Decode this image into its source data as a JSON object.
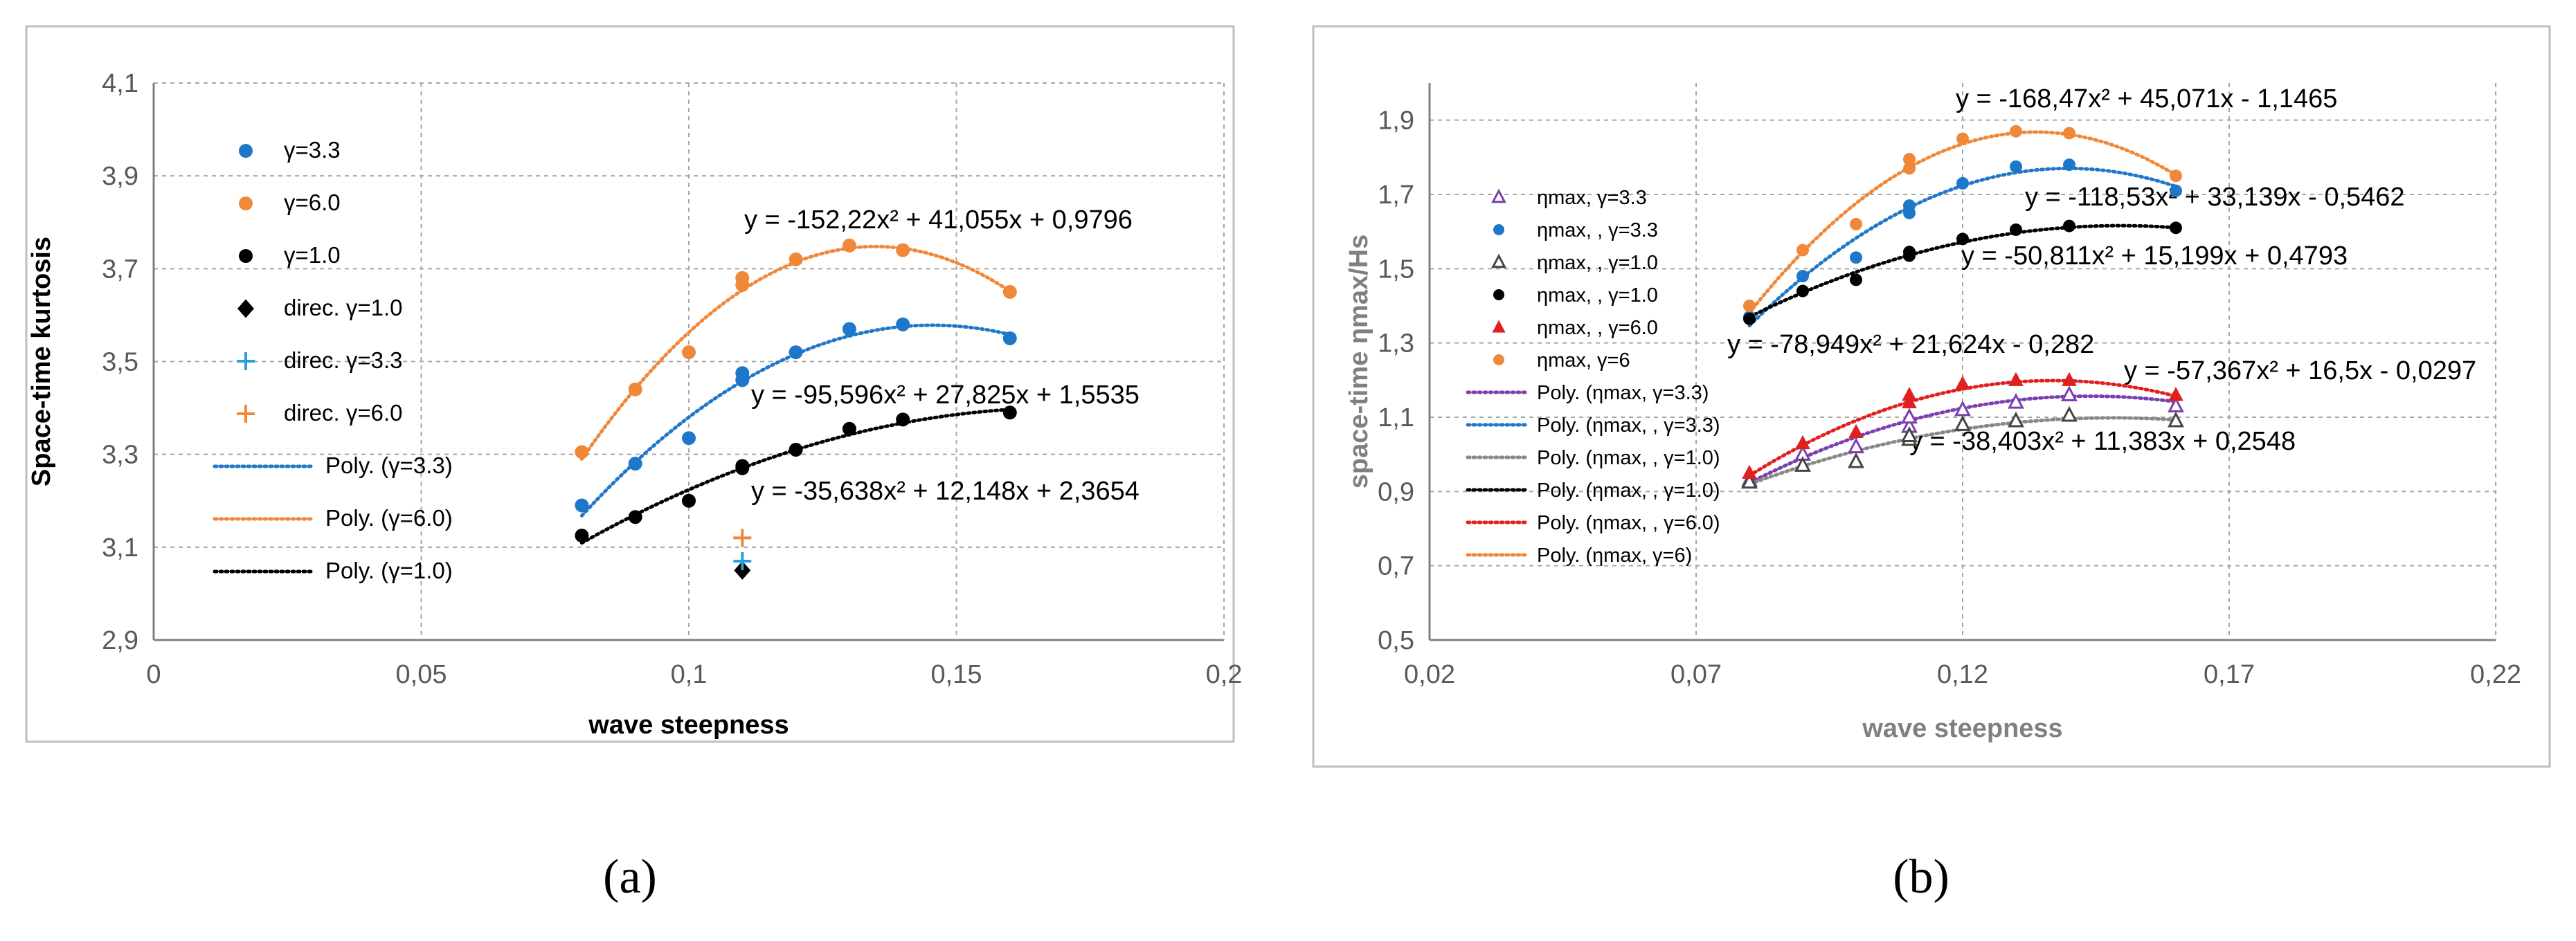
{
  "chart_data": [
    {
      "type": "scatter",
      "panel_label": "(a)",
      "title": "",
      "xlabel": "wave steepness",
      "ylabel": "Space-time kurtosis",
      "xlim": [
        0,
        0.2
      ],
      "ylim": [
        2.9,
        4.1
      ],
      "xticks": [
        0,
        0.05,
        0.1,
        0.15,
        0.2
      ],
      "xtick_labels": [
        "0",
        "0,05",
        "0,1",
        "0,15",
        "0,2"
      ],
      "yticks": [
        2.9,
        3.1,
        3.3,
        3.5,
        3.7,
        3.9,
        4.1
      ],
      "ytick_labels": [
        "2,9",
        "3,1",
        "3,3",
        "3,5",
        "3,7",
        "3,9",
        "4,1"
      ],
      "grid": "dashed",
      "legend_position": "top-left",
      "series": [
        {
          "name": "γ=3.3",
          "marker": "circle",
          "color": "#1f77c9",
          "x": [
            0.08,
            0.09,
            0.1,
            0.11,
            0.11,
            0.12,
            0.13,
            0.14,
            0.16
          ],
          "y": [
            3.19,
            3.28,
            3.335,
            3.475,
            3.46,
            3.52,
            3.57,
            3.58,
            3.55
          ]
        },
        {
          "name": "γ=6.0",
          "marker": "circle",
          "color": "#f0883a",
          "x": [
            0.08,
            0.09,
            0.1,
            0.11,
            0.11,
            0.12,
            0.13,
            0.14,
            0.16
          ],
          "y": [
            3.305,
            3.44,
            3.52,
            3.68,
            3.665,
            3.72,
            3.75,
            3.74,
            3.65
          ]
        },
        {
          "name": "γ=1.0",
          "marker": "circle",
          "color": "#000000",
          "x": [
            0.08,
            0.09,
            0.1,
            0.11,
            0.11,
            0.12,
            0.13,
            0.14,
            0.16
          ],
          "y": [
            3.125,
            3.165,
            3.2,
            3.275,
            3.27,
            3.31,
            3.355,
            3.375,
            3.39
          ]
        },
        {
          "name": "direc. γ=1.0",
          "marker": "diamond",
          "color": "#000000",
          "x": [
            0.11
          ],
          "y": [
            3.05
          ]
        },
        {
          "name": "direc. γ=3.3",
          "marker": "plus",
          "color": "#2a9fd8",
          "x": [
            0.11
          ],
          "y": [
            3.07
          ]
        },
        {
          "name": "direc. γ=6.0",
          "marker": "plus",
          "color": "#f0883a",
          "x": [
            0.11
          ],
          "y": [
            3.12
          ]
        }
      ],
      "trendlines": [
        {
          "name": "Poly. (γ=3.3)",
          "color": "#1f77c9",
          "coeffs": [
            -95.596,
            27.825,
            1.5535
          ],
          "x_range": [
            0.08,
            0.16
          ],
          "equation": "y = -95,596x² + 27,825x + 1,5535"
        },
        {
          "name": "Poly. (γ=6.0)",
          "color": "#f0883a",
          "coeffs": [
            -152.22,
            41.055,
            0.9796
          ],
          "x_range": [
            0.08,
            0.16
          ],
          "equation": "y = -152,22x² + 41,055x + 0,9796"
        },
        {
          "name": "Poly. (γ=1.0)",
          "color": "#000000",
          "coeffs": [
            -35.638,
            12.148,
            2.3654
          ],
          "x_range": [
            0.08,
            0.16
          ],
          "equation": "y = -35,638x² + 12,148x + 2,3654"
        }
      ]
    },
    {
      "type": "scatter",
      "panel_label": "(b)",
      "title": "",
      "xlabel": "wave steepness",
      "ylabel": "space-time ηmax/Hs",
      "xlim": [
        0.02,
        0.22
      ],
      "ylim": [
        0.5,
        2.0
      ],
      "xticks": [
        0.02,
        0.07,
        0.12,
        0.17,
        0.22
      ],
      "xtick_labels": [
        "0,02",
        "0,07",
        "0,12",
        "0,17",
        "0,22"
      ],
      "yticks": [
        0.5,
        0.7,
        0.9,
        1.1,
        1.3,
        1.5,
        1.7,
        1.9
      ],
      "ytick_labels": [
        "0,5",
        "0,7",
        "0,9",
        "1,1",
        "1,3",
        "1,5",
        "1,7",
        "1,9"
      ],
      "grid": "dashed",
      "legend_position": "left",
      "series": [
        {
          "name": "ηmax, γ=3.3",
          "marker": "triangle-open",
          "color": "#7b3fb0",
          "x": [
            0.08,
            0.09,
            0.1,
            0.11,
            0.11,
            0.12,
            0.13,
            0.14,
            0.16
          ],
          "y": [
            0.93,
            1.0,
            1.02,
            1.075,
            1.1,
            1.12,
            1.14,
            1.16,
            1.13
          ]
        },
        {
          "name": "ηmax, , γ=3.3",
          "marker": "circle",
          "color": "#1f77c9",
          "x": [
            0.08,
            0.09,
            0.1,
            0.11,
            0.11,
            0.12,
            0.13,
            0.14,
            0.16
          ],
          "y": [
            1.37,
            1.48,
            1.53,
            1.65,
            1.67,
            1.73,
            1.775,
            1.78,
            1.71
          ]
        },
        {
          "name": "ηmax, , γ=1.0",
          "marker": "triangle-open",
          "color": "#444444",
          "x": [
            0.08,
            0.09,
            0.1,
            0.11,
            0.11,
            0.12,
            0.13,
            0.14,
            0.16
          ],
          "y": [
            0.925,
            0.97,
            0.98,
            1.04,
            1.05,
            1.08,
            1.09,
            1.105,
            1.09
          ]
        },
        {
          "name": "ηmax, , γ=1.0",
          "marker": "circle",
          "color": "#000000",
          "x": [
            0.08,
            0.09,
            0.1,
            0.11,
            0.11,
            0.12,
            0.13,
            0.14,
            0.16
          ],
          "y": [
            1.365,
            1.44,
            1.47,
            1.535,
            1.545,
            1.58,
            1.605,
            1.615,
            1.61
          ]
        },
        {
          "name": "ηmax, , γ=6.0",
          "marker": "triangle",
          "color": "#e02020",
          "x": [
            0.08,
            0.09,
            0.1,
            0.11,
            0.11,
            0.12,
            0.13,
            0.14,
            0.16
          ],
          "y": [
            0.95,
            1.03,
            1.06,
            1.14,
            1.16,
            1.19,
            1.2,
            1.2,
            1.16
          ]
        },
        {
          "name": "ηmax, γ=6",
          "marker": "circle",
          "color": "#f0883a",
          "x": [
            0.08,
            0.09,
            0.1,
            0.11,
            0.11,
            0.12,
            0.13,
            0.14,
            0.16
          ],
          "y": [
            1.4,
            1.55,
            1.62,
            1.77,
            1.795,
            1.85,
            1.87,
            1.865,
            1.75
          ]
        }
      ],
      "trendlines": [
        {
          "name": "Poly. (ηmax, γ=3.3)",
          "color": "#7b3fb0",
          "coeffs": [
            -57.367,
            16.5,
            -0.0297
          ],
          "x_range": [
            0.08,
            0.16
          ],
          "equation": "y = -57,367x² + 16,5x - 0,0297"
        },
        {
          "name": "Poly. (ηmax, , γ=3.3)",
          "color": "#1f77c9",
          "coeffs": [
            -118.53,
            33.139,
            -0.5462
          ],
          "x_range": [
            0.08,
            0.16
          ],
          "equation": "y = -118,53x² + 33,139x - 0,5462"
        },
        {
          "name": "Poly. (ηmax, , γ=1.0)",
          "color": "#888888",
          "coeffs": [
            -38.403,
            11.383,
            0.2548
          ],
          "x_range": [
            0.08,
            0.16
          ],
          "equation": "y = -38,403x² + 11,383x + 0,2548"
        },
        {
          "name": "Poly. (ηmax, , γ=1.0)",
          "color": "#000000",
          "coeffs": [
            -50.811,
            15.199,
            0.4793
          ],
          "x_range": [
            0.08,
            0.16
          ],
          "equation": "y = -50,811x² + 15,199x + 0,4793"
        },
        {
          "name": "Poly. (ηmax, , γ=6.0)",
          "color": "#e02020",
          "coeffs": [
            -78.949,
            21.624,
            -0.282
          ],
          "x_range": [
            0.08,
            0.16
          ],
          "equation": "y = -78,949x² + 21,624x - 0,282"
        },
        {
          "name": "Poly. (ηmax, γ=6)",
          "color": "#f0883a",
          "coeffs": [
            -168.47,
            45.071,
            -1.1465
          ],
          "x_range": [
            0.08,
            0.16
          ],
          "equation": "y = -168,47x² + 45,071x - 1,1465"
        }
      ]
    }
  ]
}
